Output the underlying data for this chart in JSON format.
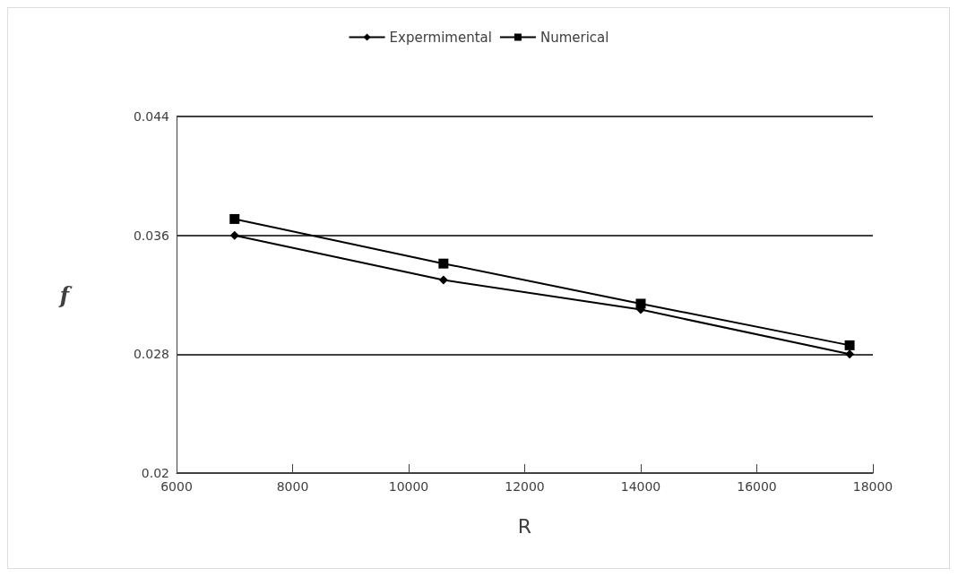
{
  "chart_data": {
    "type": "line",
    "xlabel": "R",
    "ylabel": "f",
    "x": [
      7000,
      10600,
      14000,
      17600
    ],
    "series": [
      {
        "name": "Expermimental",
        "color": "#000000",
        "marker": "diamond",
        "values": [
          0.036,
          0.033,
          0.031,
          0.028
        ]
      },
      {
        "name": "Numerical",
        "color": "#000000",
        "marker": "square",
        "values": [
          0.0371,
          0.0341,
          0.0314,
          0.0286
        ]
      }
    ],
    "xlim": [
      6000,
      18000
    ],
    "xticks": [
      6000,
      8000,
      10000,
      12000,
      14000,
      16000,
      18000
    ],
    "ylim": [
      0.02,
      0.044
    ],
    "yticks": [
      0.02,
      0.028,
      0.036,
      0.044
    ],
    "grid": "y",
    "legend": "top",
    "line_style": "solid"
  }
}
